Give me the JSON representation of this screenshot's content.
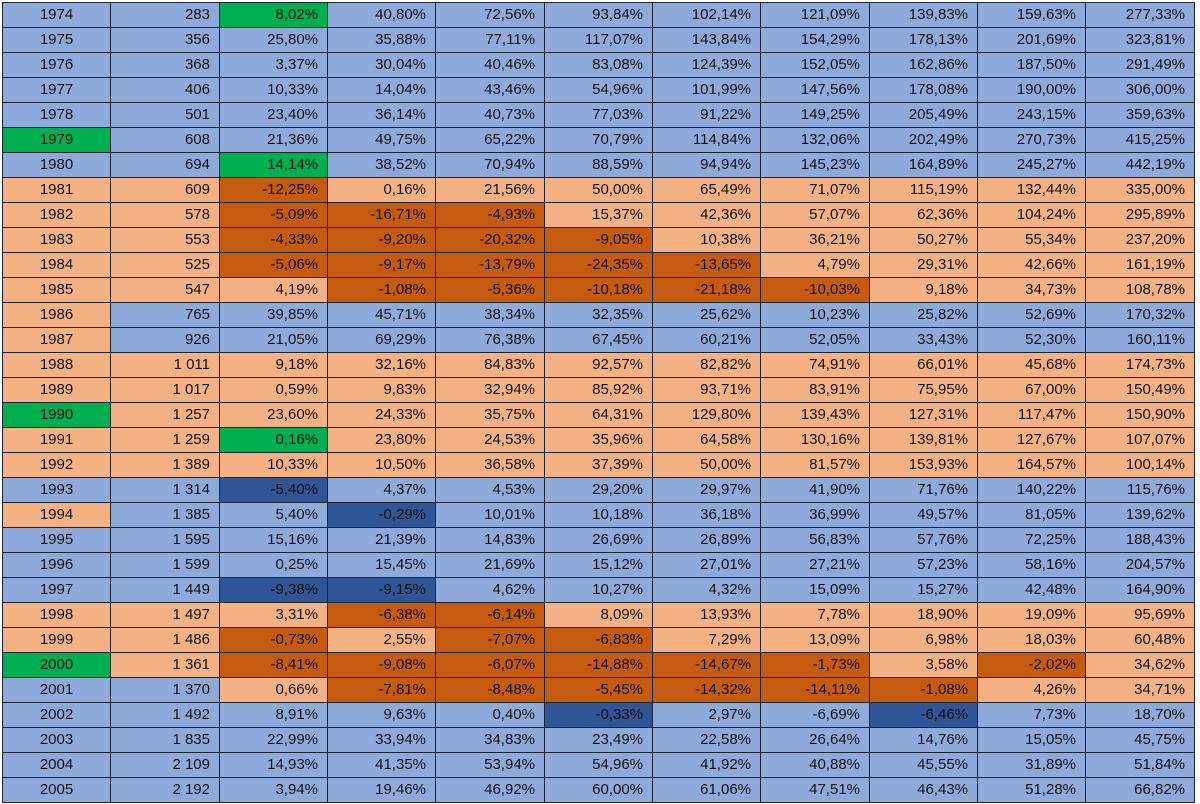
{
  "colors": {
    "b": "#8eaadb",
    "o": "#f4b183",
    "g": "#00b050",
    "db": "#2f5597",
    "do": "#c55a11"
  },
  "rows": [
    {
      "cells": [
        "1974",
        "283",
        "8,02%",
        "40,80%",
        "72,56%",
        "93,84%",
        "102,14%",
        "121,09%",
        "139,83%",
        "159,63%",
        "277,33%"
      ],
      "fills": [
        "b",
        "b",
        "g",
        "b",
        "b",
        "b",
        "b",
        "b",
        "b",
        "b",
        "b"
      ]
    },
    {
      "cells": [
        "1975",
        "356",
        "25,80%",
        "35,88%",
        "77,11%",
        "117,07%",
        "143,84%",
        "154,29%",
        "178,13%",
        "201,69%",
        "323,81%"
      ],
      "fills": [
        "b",
        "b",
        "b",
        "b",
        "b",
        "b",
        "b",
        "b",
        "b",
        "b",
        "b"
      ]
    },
    {
      "cells": [
        "1976",
        "368",
        "3,37%",
        "30,04%",
        "40,46%",
        "83,08%",
        "124,39%",
        "152,05%",
        "162,86%",
        "187,50%",
        "291,49%"
      ],
      "fills": [
        "b",
        "b",
        "b",
        "b",
        "b",
        "b",
        "b",
        "b",
        "b",
        "b",
        "b"
      ]
    },
    {
      "cells": [
        "1977",
        "406",
        "10,33%",
        "14,04%",
        "43,46%",
        "54,96%",
        "101,99%",
        "147,56%",
        "178,08%",
        "190,00%",
        "306,00%"
      ],
      "fills": [
        "b",
        "b",
        "b",
        "b",
        "b",
        "b",
        "b",
        "b",
        "b",
        "b",
        "b"
      ]
    },
    {
      "cells": [
        "1978",
        "501",
        "23,40%",
        "36,14%",
        "40,73%",
        "77,03%",
        "91,22%",
        "149,25%",
        "205,49%",
        "243,15%",
        "359,63%"
      ],
      "fills": [
        "b",
        "b",
        "b",
        "b",
        "b",
        "b",
        "b",
        "b",
        "b",
        "b",
        "b"
      ]
    },
    {
      "cells": [
        "1979",
        "608",
        "21,36%",
        "49,75%",
        "65,22%",
        "70,79%",
        "114,84%",
        "132,06%",
        "202,49%",
        "270,73%",
        "415,25%"
      ],
      "fills": [
        "g",
        "b",
        "b",
        "b",
        "b",
        "b",
        "b",
        "b",
        "b",
        "b",
        "b"
      ]
    },
    {
      "cells": [
        "1980",
        "694",
        "14,14%",
        "38,52%",
        "70,94%",
        "88,59%",
        "94,94%",
        "145,23%",
        "164,89%",
        "245,27%",
        "442,19%"
      ],
      "fills": [
        "b",
        "b",
        "g",
        "b",
        "b",
        "b",
        "b",
        "b",
        "b",
        "b",
        "b"
      ]
    },
    {
      "cells": [
        "1981",
        "609",
        "-12,25%",
        "0,16%",
        "21,56%",
        "50,00%",
        "65,49%",
        "71,07%",
        "115,19%",
        "132,44%",
        "335,00%"
      ],
      "fills": [
        "o",
        "o",
        "do",
        "o",
        "o",
        "o",
        "o",
        "o",
        "o",
        "o",
        "o"
      ]
    },
    {
      "cells": [
        "1982",
        "578",
        "-5,09%",
        "-16,71%",
        "-4,93%",
        "15,37%",
        "42,36%",
        "57,07%",
        "62,36%",
        "104,24%",
        "295,89%"
      ],
      "fills": [
        "o",
        "o",
        "do",
        "do",
        "do",
        "o",
        "o",
        "o",
        "o",
        "o",
        "o"
      ]
    },
    {
      "cells": [
        "1983",
        "553",
        "-4,33%",
        "-9,20%",
        "-20,32%",
        "-9,05%",
        "10,38%",
        "36,21%",
        "50,27%",
        "55,34%",
        "237,20%"
      ],
      "fills": [
        "o",
        "o",
        "do",
        "do",
        "do",
        "do",
        "o",
        "o",
        "o",
        "o",
        "o"
      ]
    },
    {
      "cells": [
        "1984",
        "525",
        "-5,06%",
        "-9,17%",
        "-13,79%",
        "-24,35%",
        "-13,65%",
        "4,79%",
        "29,31%",
        "42,66%",
        "161,19%"
      ],
      "fills": [
        "o",
        "o",
        "do",
        "do",
        "do",
        "do",
        "do",
        "o",
        "o",
        "o",
        "o"
      ]
    },
    {
      "cells": [
        "1985",
        "547",
        "4,19%",
        "-1,08%",
        "-5,36%",
        "-10,18%",
        "-21,18%",
        "-10,03%",
        "9,18%",
        "34,73%",
        "108,78%"
      ],
      "fills": [
        "o",
        "o",
        "o",
        "do",
        "do",
        "do",
        "do",
        "do",
        "o",
        "o",
        "o"
      ]
    },
    {
      "cells": [
        "1986",
        "765",
        "39,85%",
        "45,71%",
        "38,34%",
        "32,35%",
        "25,62%",
        "10,23%",
        "25,82%",
        "52,69%",
        "170,32%"
      ],
      "fills": [
        "o",
        "b",
        "b",
        "b",
        "b",
        "b",
        "b",
        "b",
        "b",
        "b",
        "b"
      ]
    },
    {
      "cells": [
        "1987",
        "926",
        "21,05%",
        "69,29%",
        "76,38%",
        "67,45%",
        "60,21%",
        "52,05%",
        "33,43%",
        "52,30%",
        "160,11%"
      ],
      "fills": [
        "o",
        "b",
        "b",
        "b",
        "b",
        "b",
        "b",
        "b",
        "b",
        "b",
        "b"
      ]
    },
    {
      "cells": [
        "1988",
        "1 011",
        "9,18%",
        "32,16%",
        "84,83%",
        "92,57%",
        "82,82%",
        "74,91%",
        "66,01%",
        "45,68%",
        "174,73%"
      ],
      "fills": [
        "o",
        "o",
        "o",
        "o",
        "o",
        "o",
        "o",
        "o",
        "o",
        "o",
        "o"
      ]
    },
    {
      "cells": [
        "1989",
        "1 017",
        "0,59%",
        "9,83%",
        "32,94%",
        "85,92%",
        "93,71%",
        "83,91%",
        "75,95%",
        "67,00%",
        "150,49%"
      ],
      "fills": [
        "o",
        "o",
        "o",
        "o",
        "o",
        "o",
        "o",
        "o",
        "o",
        "o",
        "o"
      ]
    },
    {
      "cells": [
        "1990",
        "1 257",
        "23,60%",
        "24,33%",
        "35,75%",
        "64,31%",
        "129,80%",
        "139,43%",
        "127,31%",
        "117,47%",
        "150,90%"
      ],
      "fills": [
        "g",
        "o",
        "o",
        "o",
        "o",
        "o",
        "o",
        "o",
        "o",
        "o",
        "o"
      ]
    },
    {
      "cells": [
        "1991",
        "1 259",
        "0,16%",
        "23,80%",
        "24,53%",
        "35,96%",
        "64,58%",
        "130,16%",
        "139,81%",
        "127,67%",
        "107,07%"
      ],
      "fills": [
        "o",
        "o",
        "g",
        "o",
        "o",
        "o",
        "o",
        "o",
        "o",
        "o",
        "o"
      ]
    },
    {
      "cells": [
        "1992",
        "1 389",
        "10,33%",
        "10,50%",
        "36,58%",
        "37,39%",
        "50,00%",
        "81,57%",
        "153,93%",
        "164,57%",
        "100,14%"
      ],
      "fills": [
        "o",
        "o",
        "o",
        "o",
        "o",
        "o",
        "o",
        "o",
        "o",
        "o",
        "o"
      ]
    },
    {
      "cells": [
        "1993",
        "1 314",
        "-5,40%",
        "4,37%",
        "4,53%",
        "29,20%",
        "29,97%",
        "41,90%",
        "71,76%",
        "140,22%",
        "115,76%"
      ],
      "fills": [
        "b",
        "b",
        "db",
        "b",
        "b",
        "b",
        "b",
        "b",
        "b",
        "b",
        "b"
      ]
    },
    {
      "cells": [
        "1994",
        "1 385",
        "5,40%",
        "-0,29%",
        "10,01%",
        "10,18%",
        "36,18%",
        "36,99%",
        "49,57%",
        "81,05%",
        "139,62%"
      ],
      "fills": [
        "o",
        "b",
        "b",
        "db",
        "b",
        "b",
        "b",
        "b",
        "b",
        "b",
        "b"
      ]
    },
    {
      "cells": [
        "1995",
        "1 595",
        "15,16%",
        "21,39%",
        "14,83%",
        "26,69%",
        "26,89%",
        "56,83%",
        "57,76%",
        "72,25%",
        "188,43%"
      ],
      "fills": [
        "b",
        "b",
        "b",
        "b",
        "b",
        "b",
        "b",
        "b",
        "b",
        "b",
        "b"
      ]
    },
    {
      "cells": [
        "1996",
        "1 599",
        "0,25%",
        "15,45%",
        "21,69%",
        "15,12%",
        "27,01%",
        "27,21%",
        "57,23%",
        "58,16%",
        "204,57%"
      ],
      "fills": [
        "b",
        "b",
        "b",
        "b",
        "b",
        "b",
        "b",
        "b",
        "b",
        "b",
        "b"
      ]
    },
    {
      "cells": [
        "1997",
        "1 449",
        "-9,38%",
        "-9,15%",
        "4,62%",
        "10,27%",
        "4,32%",
        "15,09%",
        "15,27%",
        "42,48%",
        "164,90%"
      ],
      "fills": [
        "b",
        "b",
        "db",
        "db",
        "b",
        "b",
        "b",
        "b",
        "b",
        "b",
        "b"
      ]
    },
    {
      "cells": [
        "1998",
        "1 497",
        "3,31%",
        "-6,38%",
        "-6,14%",
        "8,09%",
        "13,93%",
        "7,78%",
        "18,90%",
        "19,09%",
        "95,69%"
      ],
      "fills": [
        "o",
        "o",
        "o",
        "do",
        "do",
        "o",
        "o",
        "o",
        "o",
        "o",
        "o"
      ]
    },
    {
      "cells": [
        "1999",
        "1 486",
        "-0,73%",
        "2,55%",
        "-7,07%",
        "-6,83%",
        "7,29%",
        "13,09%",
        "6,98%",
        "18,03%",
        "60,48%"
      ],
      "fills": [
        "o",
        "o",
        "do",
        "o",
        "do",
        "do",
        "o",
        "o",
        "o",
        "o",
        "o"
      ]
    },
    {
      "cells": [
        "2000",
        "1 361",
        "-8,41%",
        "-9,08%",
        "-6,07%",
        "-14,88%",
        "-14,67%",
        "-1,73%",
        "3,58%",
        "-2,02%",
        "34,62%"
      ],
      "fills": [
        "g",
        "o",
        "do",
        "do",
        "do",
        "do",
        "do",
        "do",
        "o",
        "do",
        "o"
      ]
    },
    {
      "cells": [
        "2001",
        "1 370",
        "0,66%",
        "-7,81%",
        "-8,48%",
        "-5,45%",
        "-14,32%",
        "-14,11%",
        "-1,08%",
        "4,26%",
        "34,71%"
      ],
      "fills": [
        "b",
        "b",
        "o",
        "do",
        "do",
        "do",
        "do",
        "do",
        "do",
        "o",
        "o"
      ]
    },
    {
      "cells": [
        "2002",
        "1 492",
        "8,91%",
        "9,63%",
        "0,40%",
        "-0,33%",
        "2,97%",
        "-6,69%",
        "-6,46%",
        "7,73%",
        "18,70%"
      ],
      "fills": [
        "b",
        "b",
        "b",
        "b",
        "b",
        "db",
        "b",
        "b",
        "db",
        "b",
        "b"
      ]
    },
    {
      "cells": [
        "2003",
        "1 835",
        "22,99%",
        "33,94%",
        "34,83%",
        "23,49%",
        "22,58%",
        "26,64%",
        "14,76%",
        "15,05%",
        "45,75%"
      ],
      "fills": [
        "b",
        "b",
        "b",
        "b",
        "b",
        "b",
        "b",
        "b",
        "b",
        "b",
        "b"
      ]
    },
    {
      "cells": [
        "2004",
        "2 109",
        "14,93%",
        "41,35%",
        "53,94%",
        "54,96%",
        "41,92%",
        "40,88%",
        "45,55%",
        "31,89%",
        "51,84%"
      ],
      "fills": [
        "b",
        "b",
        "b",
        "b",
        "b",
        "b",
        "b",
        "b",
        "b",
        "b",
        "b"
      ]
    },
    {
      "cells": [
        "2005",
        "2 192",
        "3,94%",
        "19,46%",
        "46,92%",
        "60,00%",
        "61,06%",
        "47,51%",
        "46,43%",
        "51,28%",
        "66,82%"
      ],
      "fills": [
        "b",
        "b",
        "b",
        "b",
        "b",
        "b",
        "b",
        "b",
        "b",
        "b",
        "b"
      ]
    }
  ]
}
